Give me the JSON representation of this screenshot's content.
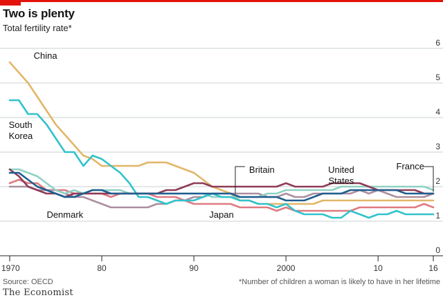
{
  "header": {
    "title": "Two is plenty",
    "subtitle": "Total fertility rate*"
  },
  "footer": {
    "source": "Source: OECD",
    "note": "*Number of children a woman is likely to have in her lifetime",
    "brand": "The Economist"
  },
  "colors": {
    "accent": "#e3120b",
    "china": "#e2b668",
    "south_korea": "#31c2cc",
    "britain": "#1f5e8f",
    "united_states": "#8e3b57",
    "france": "#8fd1c4",
    "denmark": "#ab8ea0",
    "japan": "#de7a80"
  },
  "chart_data": {
    "type": "line",
    "title": "Two is plenty",
    "subtitle": "Total fertility rate*",
    "x": [
      1970,
      1971,
      1972,
      1973,
      1974,
      1975,
      1976,
      1977,
      1978,
      1979,
      1980,
      1981,
      1982,
      1983,
      1984,
      1985,
      1986,
      1987,
      1988,
      1989,
      1990,
      1991,
      1992,
      1993,
      1994,
      1995,
      1996,
      1997,
      1998,
      1999,
      2000,
      2001,
      2002,
      2003,
      2004,
      2005,
      2006,
      2007,
      2008,
      2009,
      2010,
      2011,
      2012,
      2013,
      2014,
      2015,
      2016
    ],
    "x_tick_labels": [
      "1970",
      "80",
      "90",
      "2000",
      "10",
      "16"
    ],
    "x_tick_values": [
      1970,
      1980,
      1990,
      2000,
      2010,
      2016
    ],
    "ylim": [
      0,
      6
    ],
    "y_ticks": [
      0,
      1,
      2,
      3,
      4,
      5,
      6
    ],
    "grid": true,
    "series": [
      {
        "name": "China",
        "label_lines": [
          "China"
        ],
        "values": [
          5.6,
          5.3,
          5.0,
          4.6,
          4.2,
          3.8,
          3.5,
          3.2,
          2.9,
          2.8,
          2.6,
          2.6,
          2.6,
          2.6,
          2.6,
          2.7,
          2.7,
          2.7,
          2.6,
          2.5,
          2.4,
          2.2,
          2.0,
          1.9,
          1.8,
          1.6,
          1.6,
          1.5,
          1.5,
          1.5,
          1.5,
          1.5,
          1.5,
          1.5,
          1.6,
          1.6,
          1.6,
          1.6,
          1.6,
          1.6,
          1.6,
          1.6,
          1.6,
          1.6,
          1.6,
          1.6,
          1.6
        ]
      },
      {
        "name": "South Korea",
        "label_lines": [
          "South",
          "Korea"
        ],
        "values": [
          4.5,
          4.5,
          4.1,
          4.1,
          3.8,
          3.4,
          3.0,
          3.0,
          2.6,
          2.9,
          2.8,
          2.6,
          2.4,
          2.1,
          1.7,
          1.7,
          1.6,
          1.5,
          1.6,
          1.6,
          1.6,
          1.7,
          1.8,
          1.7,
          1.7,
          1.6,
          1.6,
          1.5,
          1.5,
          1.4,
          1.5,
          1.3,
          1.2,
          1.2,
          1.2,
          1.1,
          1.1,
          1.3,
          1.2,
          1.1,
          1.2,
          1.2,
          1.3,
          1.2,
          1.2,
          1.2,
          1.2
        ]
      },
      {
        "name": "Britain",
        "label_lines": [
          "Britain"
        ],
        "values": [
          2.4,
          2.4,
          2.2,
          2.0,
          1.9,
          1.8,
          1.7,
          1.7,
          1.8,
          1.9,
          1.9,
          1.8,
          1.8,
          1.8,
          1.8,
          1.8,
          1.8,
          1.8,
          1.8,
          1.8,
          1.8,
          1.8,
          1.8,
          1.8,
          1.8,
          1.7,
          1.7,
          1.7,
          1.7,
          1.7,
          1.6,
          1.6,
          1.6,
          1.7,
          1.8,
          1.8,
          1.8,
          1.9,
          1.9,
          1.9,
          1.9,
          1.9,
          1.9,
          1.8,
          1.8,
          1.8,
          1.8
        ]
      },
      {
        "name": "United States",
        "label_lines": [
          "United",
          "States"
        ],
        "values": [
          2.5,
          2.3,
          2.0,
          1.9,
          1.8,
          1.8,
          1.7,
          1.8,
          1.8,
          1.8,
          1.8,
          1.8,
          1.8,
          1.8,
          1.8,
          1.8,
          1.8,
          1.9,
          1.9,
          2.0,
          2.1,
          2.1,
          2.0,
          2.0,
          2.0,
          2.0,
          2.0,
          2.0,
          2.0,
          2.0,
          2.1,
          2.0,
          2.0,
          2.0,
          2.0,
          2.1,
          2.1,
          2.1,
          2.1,
          2.0,
          1.9,
          1.9,
          1.9,
          1.9,
          1.9,
          1.8,
          1.8
        ]
      },
      {
        "name": "France",
        "label_lines": [
          "France"
        ],
        "values": [
          2.5,
          2.5,
          2.4,
          2.3,
          2.1,
          1.9,
          1.8,
          1.9,
          1.8,
          1.9,
          1.9,
          1.9,
          1.9,
          1.8,
          1.8,
          1.8,
          1.8,
          1.8,
          1.8,
          1.8,
          1.8,
          1.8,
          1.7,
          1.7,
          1.7,
          1.7,
          1.7,
          1.7,
          1.8,
          1.8,
          1.9,
          1.9,
          1.9,
          1.9,
          1.9,
          1.9,
          2.0,
          2.0,
          2.0,
          2.0,
          2.0,
          2.0,
          2.0,
          2.0,
          2.0,
          2.0,
          1.9
        ]
      },
      {
        "name": "Denmark",
        "label_lines": [
          "Denmark"
        ],
        "values": [
          2.0,
          2.0,
          2.0,
          1.9,
          1.9,
          1.9,
          1.8,
          1.7,
          1.7,
          1.6,
          1.5,
          1.4,
          1.4,
          1.4,
          1.4,
          1.4,
          1.5,
          1.5,
          1.6,
          1.6,
          1.7,
          1.7,
          1.8,
          1.8,
          1.8,
          1.8,
          1.8,
          1.8,
          1.7,
          1.7,
          1.8,
          1.7,
          1.7,
          1.8,
          1.8,
          1.8,
          1.8,
          1.8,
          1.9,
          1.8,
          1.9,
          1.8,
          1.7,
          1.7,
          1.7,
          1.7,
          1.8
        ]
      },
      {
        "name": "Japan",
        "label_lines": [
          "Japan"
        ],
        "values": [
          2.1,
          2.2,
          2.1,
          2.1,
          1.9,
          1.9,
          1.9,
          1.8,
          1.8,
          1.8,
          1.8,
          1.7,
          1.8,
          1.8,
          1.8,
          1.8,
          1.7,
          1.7,
          1.7,
          1.6,
          1.5,
          1.5,
          1.5,
          1.5,
          1.5,
          1.4,
          1.4,
          1.4,
          1.4,
          1.3,
          1.4,
          1.3,
          1.3,
          1.3,
          1.3,
          1.3,
          1.3,
          1.3,
          1.4,
          1.4,
          1.4,
          1.4,
          1.4,
          1.4,
          1.4,
          1.5,
          1.4
        ]
      }
    ]
  }
}
